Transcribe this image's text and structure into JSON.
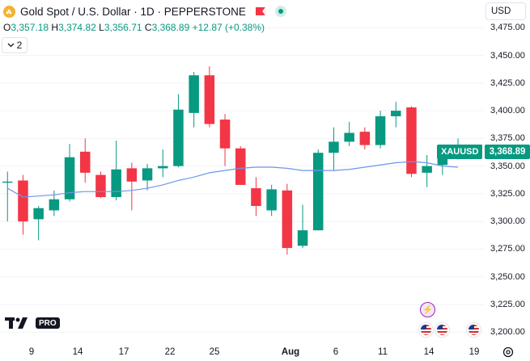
{
  "header": {
    "title": "Gold Spot / U.S. Dollar · 1D · PEPPERSTONE",
    "symbol_icon": "gold-coin-icon",
    "flag_icon": "red-flag-icon",
    "status_icon": "market-open-dot-icon"
  },
  "ohlc": {
    "o_label": "O",
    "o": "3,357.18",
    "h_label": "H",
    "h": "3,374.82",
    "l_label": "L",
    "l": "3,356.71",
    "c_label": "C",
    "c": "3,368.89",
    "change": "+12.87 (+0.38%)"
  },
  "collapse_button": {
    "icon": "chevron-down-icon",
    "count": "2"
  },
  "currency": {
    "label": "USD"
  },
  "last_price": {
    "symbol": "XAUUSD",
    "value": "3,368.89"
  },
  "brand": {
    "pro_label": "PRO"
  },
  "colors": {
    "up": "#089981",
    "down": "#f23645",
    "ma": "#6f95e8",
    "grid": "#f0f3fa"
  },
  "chart_data": {
    "type": "candlestick",
    "title": "",
    "price_ticks": [
      "3,475.00",
      "3,450.00",
      "3,425.00",
      "3,400.00",
      "3,375.00",
      "3,350.00",
      "3,325.00",
      "3,300.00",
      "3,275.00",
      "3,250.00",
      "3,225.00",
      "3,200.00"
    ],
    "ylim": [
      3190,
      3500
    ],
    "time_ticks": [
      {
        "label": "9",
        "bold": false
      },
      {
        "label": "14",
        "bold": false
      },
      {
        "label": "17",
        "bold": false
      },
      {
        "label": "22",
        "bold": false
      },
      {
        "label": "25",
        "bold": false
      },
      {
        "label": "Aug",
        "bold": true
      },
      {
        "label": "6",
        "bold": false
      },
      {
        "label": "11",
        "bold": false
      },
      {
        "label": "14",
        "bold": false
      },
      {
        "label": "19",
        "bold": false
      }
    ],
    "candles": [
      {
        "o": 3335,
        "h": 3345,
        "l": 3300,
        "c": 3336
      },
      {
        "o": 3337,
        "h": 3342,
        "l": 3288,
        "c": 3300
      },
      {
        "o": 3302,
        "h": 3314,
        "l": 3283,
        "c": 3312
      },
      {
        "o": 3310,
        "h": 3328,
        "l": 3305,
        "c": 3320
      },
      {
        "o": 3320,
        "h": 3370,
        "l": 3318,
        "c": 3358
      },
      {
        "o": 3363,
        "h": 3375,
        "l": 3335,
        "c": 3344
      },
      {
        "o": 3342,
        "h": 3345,
        "l": 3321,
        "c": 3322
      },
      {
        "o": 3322,
        "h": 3373,
        "l": 3319,
        "c": 3347
      },
      {
        "o": 3348,
        "h": 3353,
        "l": 3310,
        "c": 3336
      },
      {
        "o": 3337,
        "h": 3352,
        "l": 3328,
        "c": 3348
      },
      {
        "o": 3348,
        "h": 3365,
        "l": 3340,
        "c": 3350
      },
      {
        "o": 3350,
        "h": 3415,
        "l": 3349,
        "c": 3401
      },
      {
        "o": 3398,
        "h": 3435,
        "l": 3385,
        "c": 3432
      },
      {
        "o": 3432,
        "h": 3440,
        "l": 3385,
        "c": 3388
      },
      {
        "o": 3392,
        "h": 3397,
        "l": 3350,
        "c": 3366
      },
      {
        "o": 3366,
        "h": 3368,
        "l": 3333,
        "c": 3333
      },
      {
        "o": 3330,
        "h": 3340,
        "l": 3305,
        "c": 3314
      },
      {
        "o": 3310,
        "h": 3333,
        "l": 3305,
        "c": 3329
      },
      {
        "o": 3328,
        "h": 3334,
        "l": 3270,
        "c": 3276
      },
      {
        "o": 3278,
        "h": 3315,
        "l": 3276,
        "c": 3292
      },
      {
        "o": 3292,
        "h": 3365,
        "l": 3292,
        "c": 3362
      },
      {
        "o": 3362,
        "h": 3385,
        "l": 3346,
        "c": 3372
      },
      {
        "o": 3372,
        "h": 3390,
        "l": 3368,
        "c": 3380
      },
      {
        "o": 3381,
        "h": 3385,
        "l": 3365,
        "c": 3369
      },
      {
        "o": 3369,
        "h": 3400,
        "l": 3366,
        "c": 3395
      },
      {
        "o": 3395,
        "h": 3408,
        "l": 3385,
        "c": 3400
      },
      {
        "o": 3403,
        "h": 3404,
        "l": 3340,
        "c": 3343
      },
      {
        "o": 3344,
        "h": 3360,
        "l": 3331,
        "c": 3350
      },
      {
        "o": 3351,
        "h": 3362,
        "l": 3342,
        "c": 3357
      },
      {
        "o": 3357,
        "h": 3375,
        "l": 3356,
        "c": 3369
      }
    ],
    "moving_average": [
      3330,
      3322,
      3323,
      3324,
      3326,
      3327,
      3327,
      3327,
      3328,
      3330,
      3333,
      3337,
      3340,
      3344,
      3346,
      3348,
      3349,
      3349,
      3348,
      3346,
      3346,
      3346,
      3347,
      3349,
      3351,
      3353,
      3354,
      3353,
      3350,
      3349
    ]
  },
  "events": [
    {
      "icon": "lightning-event-icon"
    },
    {
      "icon": "us-flag-event-icon"
    },
    {
      "icon": "us-flag-event-icon"
    },
    {
      "icon": "us-flag-event-icon"
    }
  ]
}
